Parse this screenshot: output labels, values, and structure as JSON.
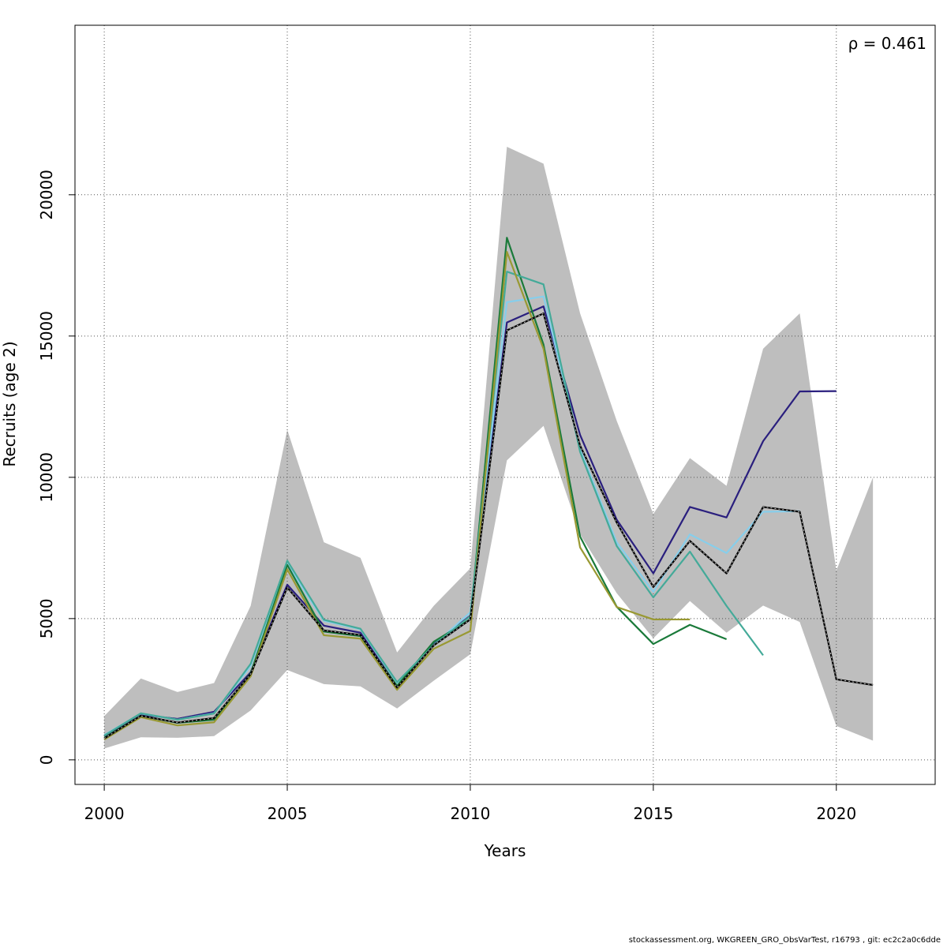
{
  "chart_data": {
    "type": "line",
    "xlabel": "Years",
    "ylabel": "Recruits (age 2)",
    "annotation": "ρ = 0.461",
    "xlim": [
      1999.2,
      2022.7
    ],
    "ylim": [
      -870,
      26000
    ],
    "xticks": [
      2000,
      2005,
      2010,
      2015,
      2020
    ],
    "yticks": [
      0,
      5000,
      10000,
      15000,
      20000
    ],
    "grid": true,
    "band": {
      "x": [
        2000,
        2001,
        2002,
        2003,
        2004,
        2005,
        2006,
        2007,
        2008,
        2009,
        2010,
        2011,
        2012,
        2013,
        2014,
        2015,
        2016,
        2017,
        2018,
        2019,
        2020,
        2021
      ],
      "upper": [
        1550,
        2880,
        2400,
        2720,
        5450,
        11680,
        7700,
        7150,
        3800,
        5450,
        6780,
        21700,
        21100,
        15800,
        12000,
        8700,
        10680,
        9700,
        14550,
        15800,
        6700,
        10000
      ],
      "lower": [
        400,
        800,
        780,
        840,
        1750,
        3180,
        2680,
        2600,
        1820,
        2800,
        3740,
        10600,
        11820,
        7980,
        5900,
        4300,
        5620,
        4500,
        5460,
        4880,
        1200,
        680
      ],
      "color": "#bebebe"
    },
    "series": [
      {
        "color": "#2a1f7e",
        "dashed": false,
        "x": [
          2000,
          2001,
          2002,
          2003,
          2004,
          2005,
          2006,
          2007,
          2008,
          2009,
          2010,
          2011,
          2012,
          2013,
          2014,
          2015,
          2016,
          2017,
          2018,
          2019,
          2020
        ],
        "values": [
          850,
          1600,
          1450,
          1700,
          3100,
          6200,
          4750,
          4500,
          2600,
          4100,
          5100,
          15480,
          16050,
          11500,
          8500,
          6600,
          8950,
          8580,
          11280,
          13040,
          13050
        ]
      },
      {
        "color": "#87ceeb",
        "dashed": false,
        "x": [
          2000,
          2001,
          2002,
          2003,
          2004,
          2005,
          2006,
          2007,
          2008,
          2009,
          2010,
          2011,
          2012,
          2013,
          2014,
          2015,
          2016,
          2017,
          2018,
          2019
        ],
        "values": [
          880,
          1640,
          1420,
          1650,
          3320,
          6930,
          4920,
          4620,
          2720,
          4060,
          5220,
          16200,
          16400,
          11000,
          7700,
          5950,
          7980,
          7320,
          8780,
          8800
        ]
      },
      {
        "color": "#1a7a3a",
        "dashed": false,
        "x": [
          2000,
          2001,
          2002,
          2003,
          2004,
          2005,
          2006,
          2007,
          2008,
          2009,
          2010,
          2011,
          2012,
          2013,
          2014,
          2015,
          2016,
          2017
        ],
        "values": [
          780,
          1560,
          1310,
          1420,
          3060,
          6900,
          4540,
          4380,
          2620,
          4180,
          4970,
          18480,
          14700,
          7900,
          5420,
          4100,
          4780,
          4270
        ]
      },
      {
        "color": "#44aa99",
        "dashed": false,
        "x": [
          2000,
          2001,
          2002,
          2003,
          2004,
          2005,
          2006,
          2007,
          2008,
          2009,
          2010,
          2011,
          2012,
          2013,
          2014,
          2015,
          2016,
          2017,
          2018
        ],
        "values": [
          860,
          1650,
          1420,
          1640,
          3400,
          7050,
          4960,
          4640,
          2750,
          4070,
          5080,
          17280,
          16830,
          10900,
          7570,
          5750,
          7370,
          5450,
          3700
        ]
      },
      {
        "color": "#999933",
        "dashed": false,
        "x": [
          2000,
          2001,
          2002,
          2003,
          2004,
          2005,
          2006,
          2007,
          2008,
          2009,
          2010,
          2011,
          2012,
          2013,
          2014,
          2015,
          2016
        ],
        "values": [
          720,
          1510,
          1220,
          1330,
          2960,
          6740,
          4410,
          4290,
          2480,
          3930,
          4560,
          17980,
          14550,
          7520,
          5410,
          4970,
          4970
        ]
      },
      {
        "color": "#000000",
        "dashed": true,
        "x": [
          2000,
          2001,
          2002,
          2003,
          2004,
          2005,
          2006,
          2007,
          2008,
          2009,
          2010,
          2011,
          2012,
          2013,
          2014,
          2015,
          2016,
          2017,
          2018,
          2019,
          2020,
          2021
        ],
        "values": [
          760,
          1560,
          1320,
          1480,
          3040,
          6100,
          4580,
          4420,
          2560,
          4050,
          4970,
          15200,
          15800,
          11120,
          8400,
          6120,
          7750,
          6600,
          8950,
          8780,
          2850,
          2650
        ]
      }
    ]
  },
  "footer": "stockassessment.org, WKGREEN_GRO_ObsVarTest, r16793 , git: ec2c2a0c6dde"
}
